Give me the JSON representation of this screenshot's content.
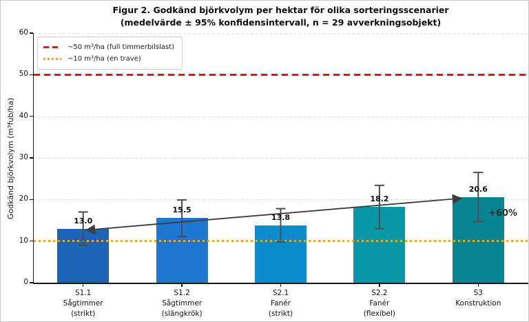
{
  "chart_data": {
    "type": "bar",
    "title": "Figur 2. Godkänd björkvolym per hektar för olika sorteringsscenarier",
    "subtitle": "(medelvärde ± 95% konfidensintervall, n = 29 avverkningsobjekt)",
    "ylabel": "Godkänd björkvolym (m³fub/ha)",
    "xlabel": "",
    "ylim": [
      0,
      60
    ],
    "yticks": [
      0,
      10,
      20,
      30,
      40,
      50,
      60
    ],
    "grid": "horizontal-dashed",
    "legend_position": "upper-left",
    "n_objects": 29,
    "categories": [
      {
        "code": "S1.1",
        "name": "Sågtimmer",
        "variant": "(strikt)"
      },
      {
        "code": "S1.2",
        "name": "Sågtimmer",
        "variant": "(slängkrök)"
      },
      {
        "code": "S2.1",
        "name": "Fanér",
        "variant": "(strikt)"
      },
      {
        "code": "S2.2",
        "name": "Fanér",
        "variant": "(flexibel)"
      },
      {
        "code": "S3",
        "name": "Konstruktion",
        "variant": ""
      }
    ],
    "values": [
      13.0,
      15.5,
      13.8,
      18.2,
      20.6
    ],
    "ci95": [
      4.0,
      4.4,
      4.0,
      5.2,
      5.9
    ],
    "bar_colors": [
      "#1b64b6",
      "#1e78d2",
      "#0a8ccd",
      "#0898a8",
      "#088592"
    ],
    "errorbar_color": "#4d4d4d",
    "reference_lines": [
      {
        "value": 50,
        "label": "~50 m³/ha (full timmerbilslast)",
        "color": "#ee1111",
        "style": "dashed"
      },
      {
        "value": 10,
        "label": "~10 m³/ha (en trave)",
        "color": "#ffa500",
        "style": "dotted"
      }
    ],
    "annotation": {
      "text": "+60%",
      "from_category": "S1.1",
      "to_category": "S3",
      "arrow_color": "#3d3d3d"
    }
  }
}
